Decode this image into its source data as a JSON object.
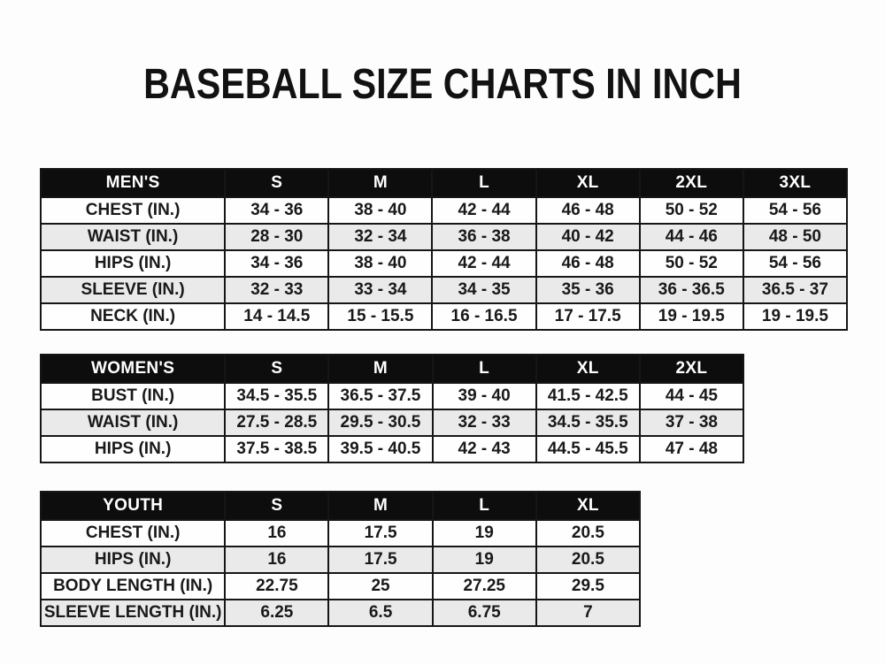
{
  "page_title": "BASEBALL SIZE CHARTS IN INCH",
  "colors": {
    "header_bg": "#0d0d0d",
    "header_text": "#ffffff",
    "row_stripe": "#eaeaea",
    "border": "#161616",
    "text": "#191919"
  },
  "chart_data": [
    {
      "type": "table",
      "name": "MEN'S",
      "columns": [
        "MEN'S",
        "S",
        "M",
        "L",
        "XL",
        "2XL",
        "3XL"
      ],
      "rows": [
        [
          "CHEST (IN.)",
          "34 - 36",
          "38 - 40",
          "42 - 44",
          "46 - 48",
          "50 - 52",
          "54 - 56"
        ],
        [
          "WAIST (IN.)",
          "28 - 30",
          "32 - 34",
          "36 - 38",
          "40 - 42",
          "44 - 46",
          "48 - 50"
        ],
        [
          "HIPS (IN.)",
          "34 - 36",
          "38 - 40",
          "42 - 44",
          "46 - 48",
          "50 - 52",
          "54 - 56"
        ],
        [
          "SLEEVE (IN.)",
          "32 - 33",
          "33 - 34",
          "34 - 35",
          "35 - 36",
          "36 - 36.5",
          "36.5 - 37"
        ],
        [
          "NECK (IN.)",
          "14 - 14.5",
          "15 - 15.5",
          "16 - 16.5",
          "17 - 17.5",
          "19 - 19.5",
          "19 - 19.5"
        ]
      ]
    },
    {
      "type": "table",
      "name": "WOMEN'S",
      "columns": [
        "WOMEN'S",
        "S",
        "M",
        "L",
        "XL",
        "2XL"
      ],
      "rows": [
        [
          "BUST (IN.)",
          "34.5 - 35.5",
          "36.5 - 37.5",
          "39 - 40",
          "41.5 - 42.5",
          "44 - 45"
        ],
        [
          "WAIST (IN.)",
          "27.5 - 28.5",
          "29.5 - 30.5",
          "32 - 33",
          "34.5 - 35.5",
          "37 - 38"
        ],
        [
          "HIPS (IN.)",
          "37.5 - 38.5",
          "39.5 - 40.5",
          "42 - 43",
          "44.5 - 45.5",
          "47 - 48"
        ]
      ]
    },
    {
      "type": "table",
      "name": "YOUTH",
      "columns": [
        "YOUTH",
        "S",
        "M",
        "L",
        "XL"
      ],
      "rows": [
        [
          "CHEST (IN.)",
          "16",
          "17.5",
          "19",
          "20.5"
        ],
        [
          "HIPS (IN.)",
          "16",
          "17.5",
          "19",
          "20.5"
        ],
        [
          "BODY LENGTH (IN.)",
          "22.75",
          "25",
          "27.25",
          "29.5"
        ],
        [
          "SLEEVE LENGTH (IN.)",
          "6.25",
          "6.5",
          "6.75",
          "7"
        ]
      ]
    }
  ]
}
